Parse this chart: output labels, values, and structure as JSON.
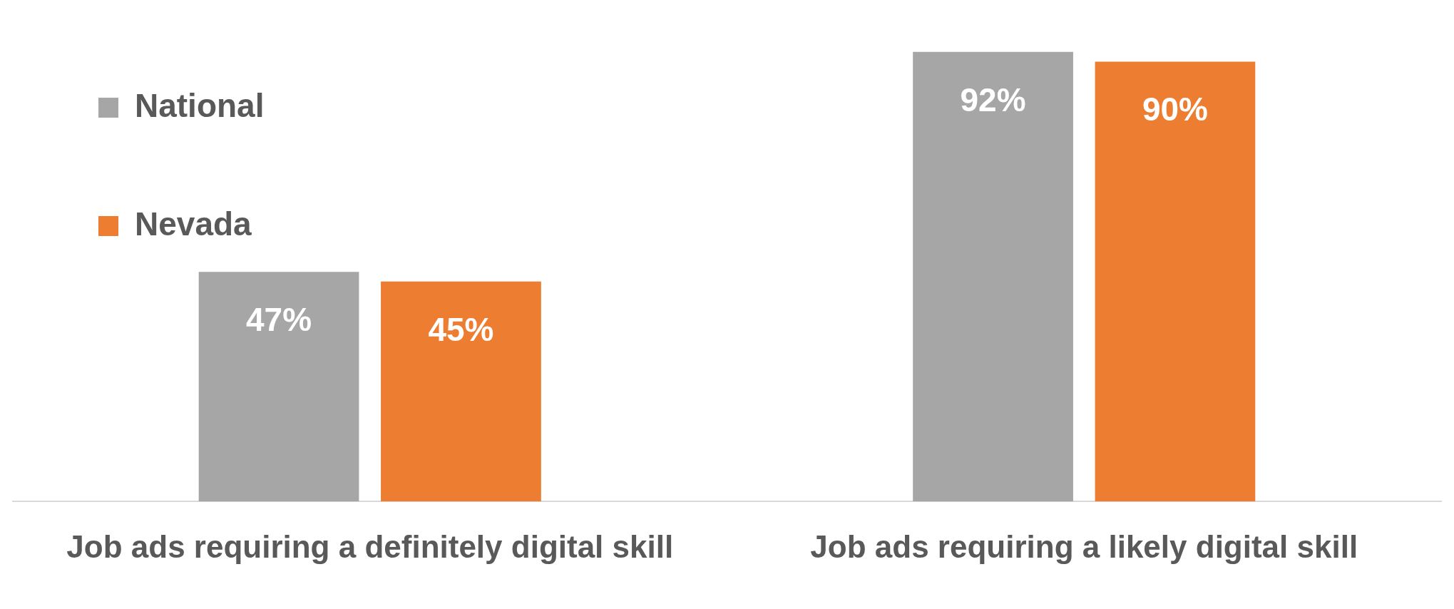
{
  "chart_data": {
    "type": "bar",
    "categories": [
      "Job ads requiring a definitely digital skill",
      "Job ads requiring a likely digital skill"
    ],
    "series": [
      {
        "name": "National",
        "color": "#a6a6a6",
        "values": [
          47,
          92
        ],
        "value_labels": [
          "47%",
          "92%"
        ]
      },
      {
        "name": "Nevada",
        "color": "#ed7d31",
        "values": [
          45,
          90
        ],
        "value_labels": [
          "45%",
          "90%"
        ]
      }
    ],
    "legend": "top left",
    "grid": false
  }
}
